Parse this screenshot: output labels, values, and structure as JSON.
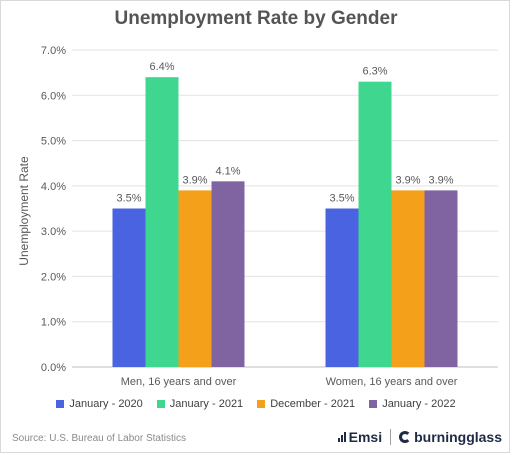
{
  "title": "Unemployment Rate by Gender",
  "source": "Source:  U.S. Bureau of Labor Statistics",
  "logos": {
    "emsi": "Emsi",
    "burning_glass": "burningglass"
  },
  "chart_data": {
    "type": "bar",
    "title": "Unemployment Rate by Gender",
    "ylabel": "Unemployment Rate",
    "xlabel": "",
    "ylim": [
      0,
      7
    ],
    "yticks": [
      "0.0%",
      "1.0%",
      "2.0%",
      "3.0%",
      "4.0%",
      "5.0%",
      "6.0%",
      "7.0%"
    ],
    "categories": [
      "Men, 16 years and over",
      "Women, 16 years and over"
    ],
    "series": [
      {
        "name": "January - 2020",
        "color": "#4a63e0",
        "values": [
          3.5,
          3.5
        ],
        "labels": [
          "3.5%",
          "3.5%"
        ]
      },
      {
        "name": "January - 2021",
        "color": "#3fd68f",
        "values": [
          6.4,
          6.3
        ],
        "labels": [
          "6.4%",
          "6.3%"
        ]
      },
      {
        "name": "December - 2021",
        "color": "#f5a01a",
        "values": [
          3.9,
          3.9
        ],
        "labels": [
          "3.9%",
          "3.9%"
        ]
      },
      {
        "name": "January - 2022",
        "color": "#8064a2",
        "values": [
          4.1,
          3.9
        ],
        "labels": [
          "4.1%",
          "3.9%"
        ]
      }
    ],
    "grid": true,
    "legend": "bottom"
  }
}
